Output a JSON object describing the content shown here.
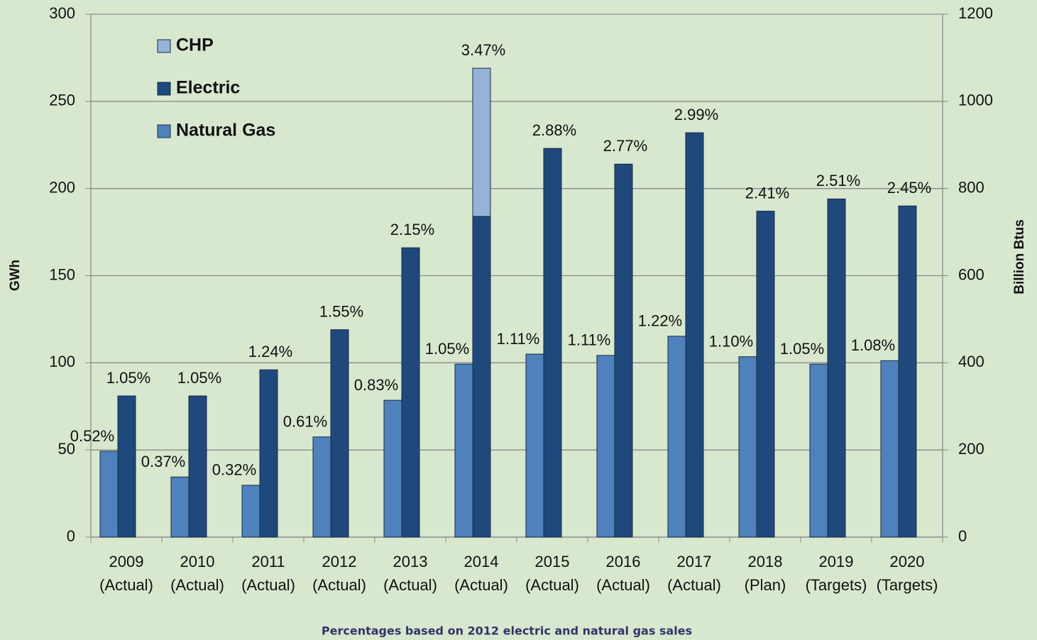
{
  "chart_data": {
    "type": "bar",
    "categories": [
      [
        "2009",
        "(Actual)"
      ],
      [
        "2010",
        "(Actual)"
      ],
      [
        "2011",
        "(Actual)"
      ],
      [
        "2012",
        "(Actual)"
      ],
      [
        "2013",
        "(Actual)"
      ],
      [
        "2014",
        "(Actual)"
      ],
      [
        "2015",
        "(Actual)"
      ],
      [
        "2016",
        "(Actual)"
      ],
      [
        "2017",
        "(Actual)"
      ],
      [
        "2018",
        "(Plan)"
      ],
      [
        "2019",
        "(Targets)"
      ],
      [
        "2020",
        "(Targets)"
      ]
    ],
    "series": [
      {
        "name": "Natural Gas",
        "color": "#4f81bd",
        "axis": "y2",
        "values": [
          197,
          138,
          119,
          230,
          314,
          397,
          420,
          417,
          461,
          414,
          397,
          405
        ],
        "percent_labels": [
          "0.52%",
          "0.37%",
          "0.32%",
          "0.61%",
          "0.83%",
          "1.05%",
          "1.11%",
          "1.11%",
          "1.22%",
          "1.10%",
          "1.05%",
          "1.08%"
        ]
      },
      {
        "name": "Electric",
        "color": "#1f497d",
        "values": [
          81,
          81,
          96,
          119,
          166,
          184,
          223,
          214,
          232,
          187,
          194,
          190
        ],
        "percent_labels": [
          "1.05%",
          "1.05%",
          "1.24%",
          "1.55%",
          "2.15%",
          "3.47%",
          "2.88%",
          "2.77%",
          "2.99%",
          "2.41%",
          "2.51%",
          "2.45%"
        ]
      },
      {
        "name": "CHP",
        "color": "#95b3d7",
        "stack_on": "Electric",
        "values": [
          0,
          0,
          0,
          0,
          0,
          85,
          0,
          0,
          0,
          0,
          0,
          0
        ]
      }
    ],
    "legend_order": [
      "CHP",
      "Electric",
      "Natural Gas"
    ],
    "ylabel": "GWh",
    "y2label": "Billion Btus",
    "ylim": [
      0,
      300
    ],
    "yticks": [
      0,
      50,
      100,
      150,
      200,
      250,
      300
    ],
    "y2lim": [
      0,
      1200
    ],
    "y2ticks": [
      0,
      200,
      400,
      600,
      800,
      1000,
      1200
    ],
    "grid": true,
    "legend": "upper left",
    "footnote": "Percentages based on 2012 electric and natural gas sales"
  }
}
